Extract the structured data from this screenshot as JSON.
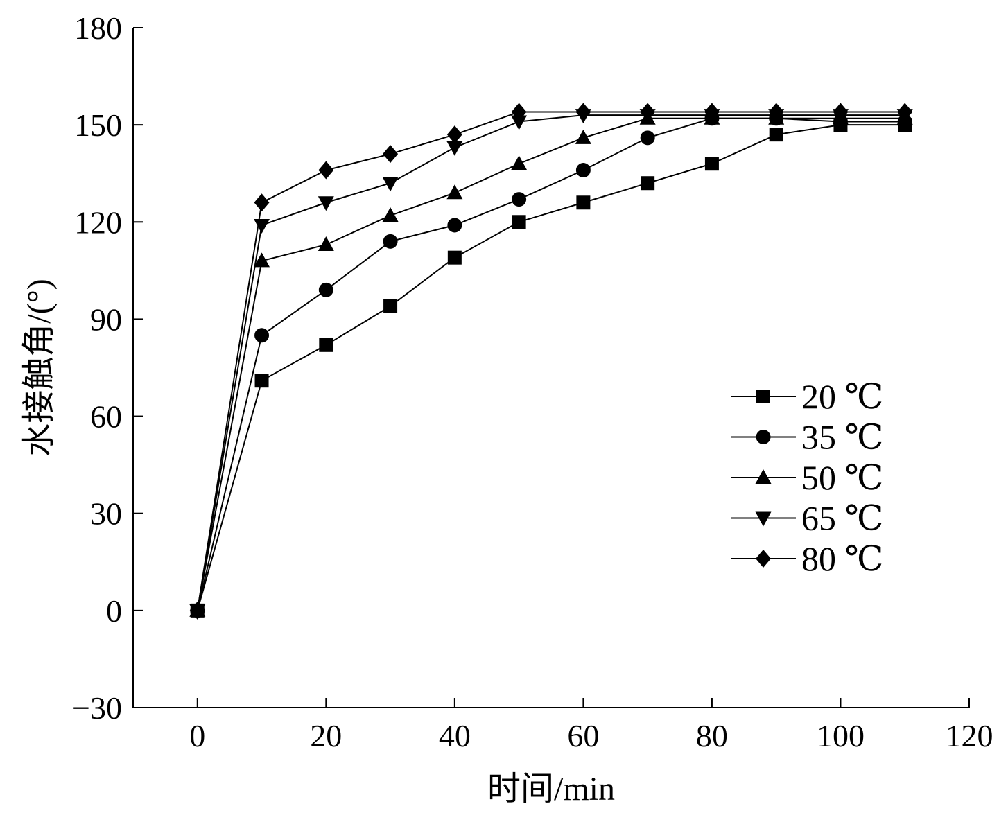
{
  "chart_data": {
    "type": "line",
    "title": "",
    "xlabel": "时间/min",
    "ylabel": "水接触角/(°)",
    "xlim": [
      -10,
      120
    ],
    "ylim": [
      -30,
      180
    ],
    "xticks": [
      0,
      20,
      40,
      60,
      80,
      100,
      120
    ],
    "yticks": [
      -30,
      0,
      30,
      60,
      90,
      120,
      150,
      180
    ],
    "xtick_labels": [
      "0",
      "20",
      "40",
      "60",
      "80",
      "100",
      "120"
    ],
    "ytick_labels": [
      "−30",
      "0",
      "30",
      "60",
      "90",
      "120",
      "150",
      "180"
    ],
    "grid": false,
    "legend_position": "center-right",
    "x": [
      0,
      10,
      20,
      30,
      40,
      50,
      60,
      70,
      80,
      90,
      100,
      110
    ],
    "series": [
      {
        "name": "20 ℃",
        "marker": "square",
        "values": [
          0,
          71,
          82,
          94,
          109,
          120,
          126,
          132,
          138,
          147,
          150,
          150
        ]
      },
      {
        "name": "35 ℃",
        "marker": "circle",
        "values": [
          0,
          85,
          99,
          114,
          119,
          127,
          136,
          146,
          152,
          152,
          151,
          151
        ]
      },
      {
        "name": "50 ℃",
        "marker": "triangle-up",
        "values": [
          0,
          108,
          113,
          122,
          129,
          138,
          146,
          152,
          152,
          152,
          152,
          152
        ]
      },
      {
        "name": "65 ℃",
        "marker": "triangle-down",
        "values": [
          0,
          119,
          126,
          132,
          143,
          151,
          153,
          153,
          153,
          153,
          153,
          153
        ]
      },
      {
        "name": "80 ℃",
        "marker": "diamond",
        "values": [
          0,
          126,
          136,
          141,
          147,
          154,
          154,
          154,
          154,
          154,
          154,
          154
        ]
      }
    ]
  }
}
